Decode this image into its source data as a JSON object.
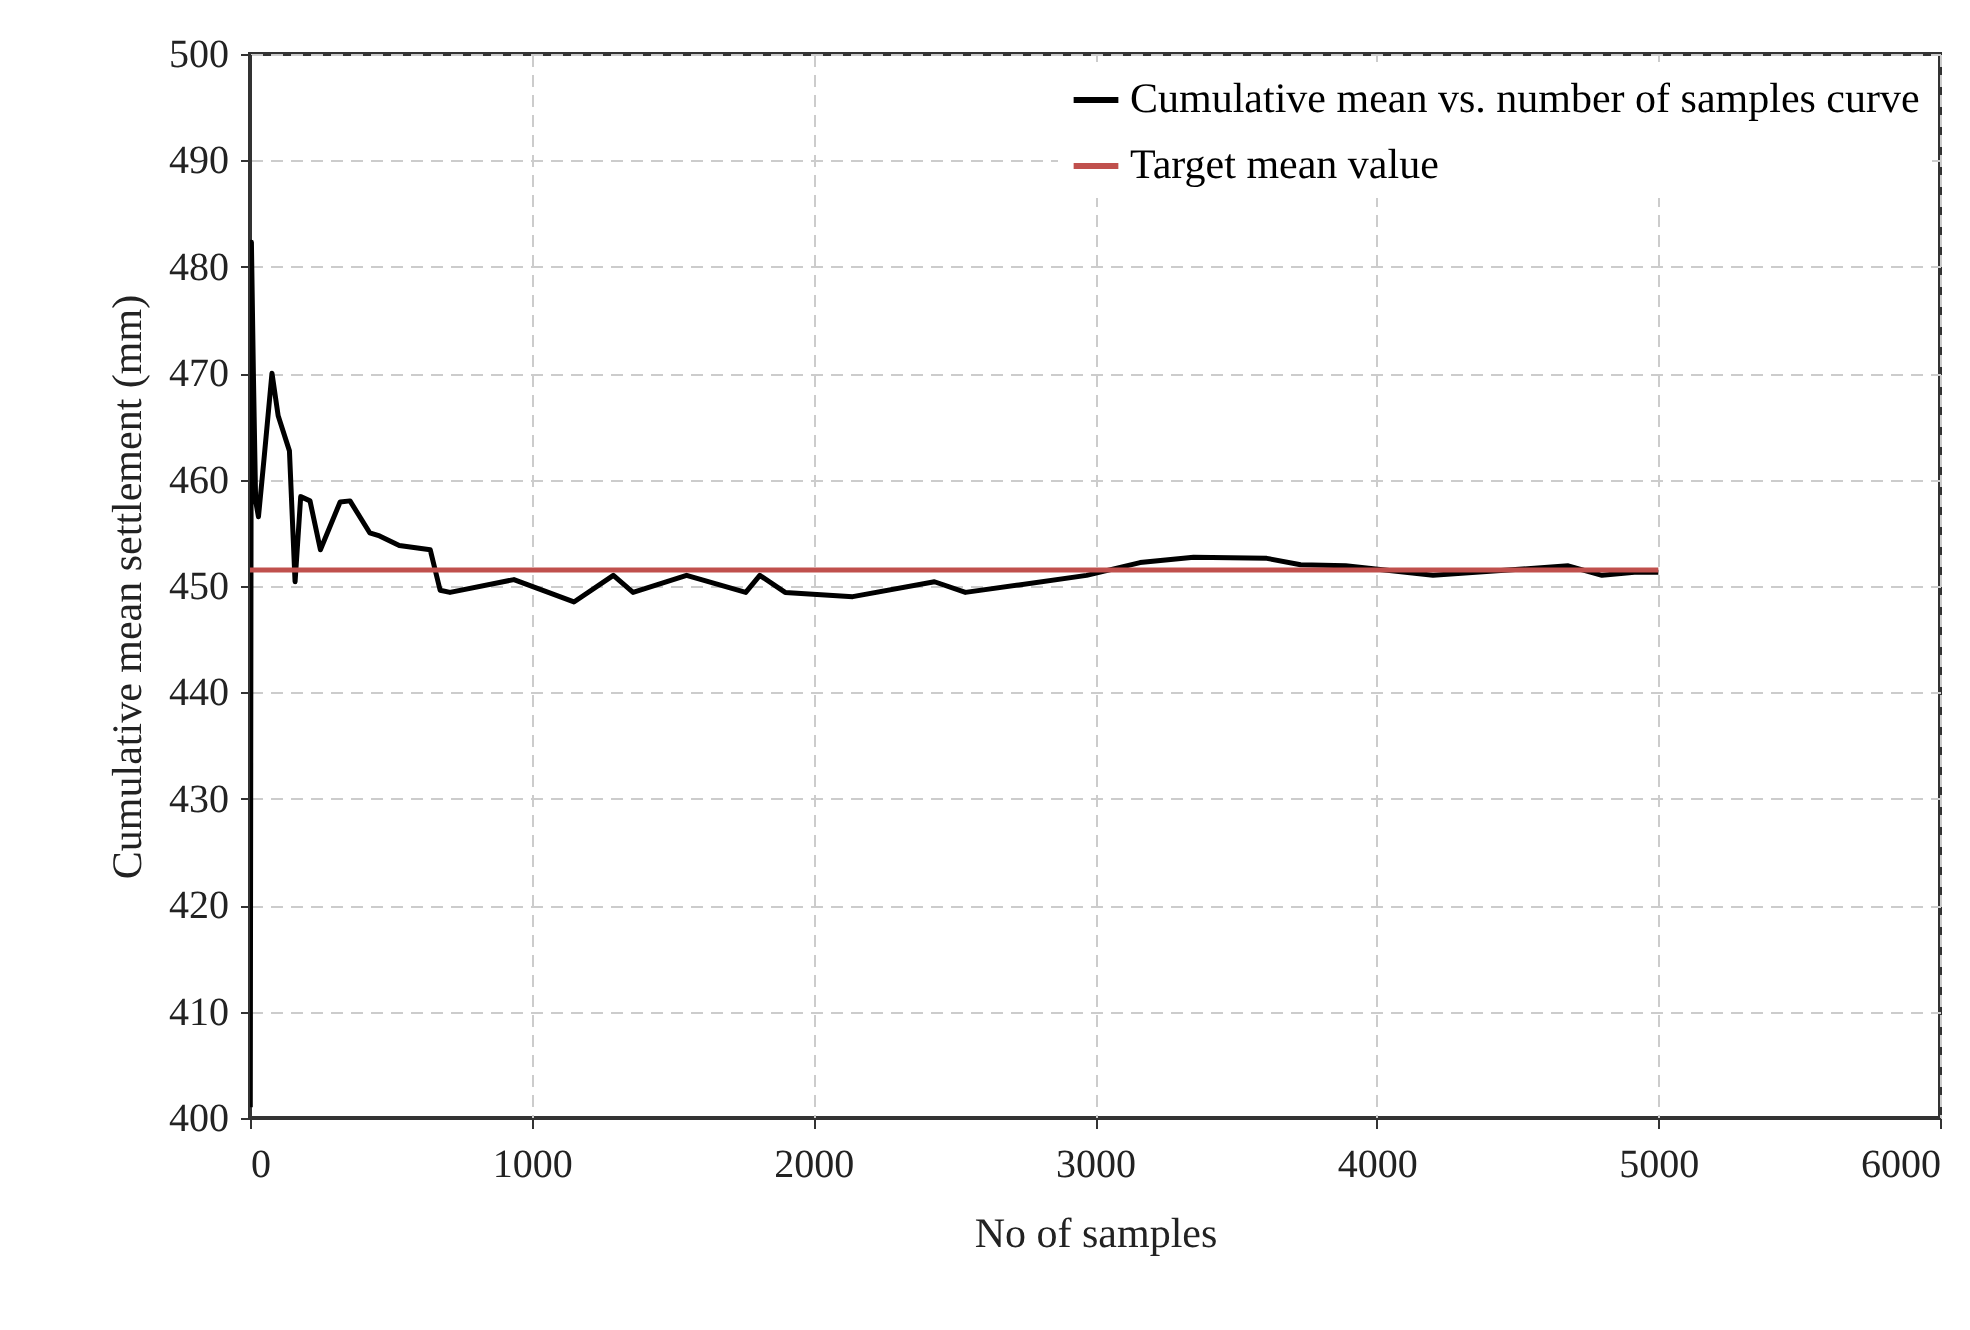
{
  "chart_data": {
    "type": "line",
    "xlabel": "No of samples",
    "ylabel": "Cumulative  mean  settlement  (mm)",
    "xlim": [
      0,
      6000
    ],
    "xticks": [
      0,
      1000,
      2000,
      3000,
      4000,
      5000,
      6000
    ],
    "ylim": [
      400,
      500
    ],
    "yticks": [
      400,
      410,
      420,
      430,
      440,
      450,
      460,
      470,
      480,
      490,
      500
    ],
    "grid": true,
    "legend": "top right",
    "line_style": "solid",
    "series": [
      {
        "name": "Cumulative mean vs. number of samples curve",
        "color": "#000000",
        "x": [
          1,
          5,
          12,
          20,
          30,
          50,
          78,
          100,
          140,
          160,
          180,
          213,
          250,
          320,
          355,
          425,
          460,
          530,
          640,
          675,
          710,
          937,
          1150,
          1290,
          1360,
          1550,
          1760,
          1810,
          1900,
          2140,
          2430,
          2540,
          2730,
          2970,
          3160,
          3350,
          3610,
          3730,
          3890,
          4200,
          4680,
          4800,
          4915,
          5000
        ],
        "values": [
          401,
          482.3,
          470,
          458,
          456.5,
          462,
          470,
          466,
          462.7,
          450.4,
          458.4,
          458,
          453.4,
          457.9,
          458,
          455,
          454.7,
          453.8,
          453.4,
          449.6,
          449.4,
          450.6,
          448.5,
          451,
          449.4,
          451,
          449.4,
          451,
          449.4,
          449,
          450.4,
          449.4,
          450.1,
          451,
          452.2,
          452.7,
          452.6,
          452,
          451.9,
          451,
          451.9,
          451,
          451.3,
          451.3
        ]
      },
      {
        "name": "Target mean value",
        "color": "#c0504d",
        "x": [
          0,
          5000
        ],
        "values": [
          451.5,
          451.5
        ]
      }
    ]
  }
}
